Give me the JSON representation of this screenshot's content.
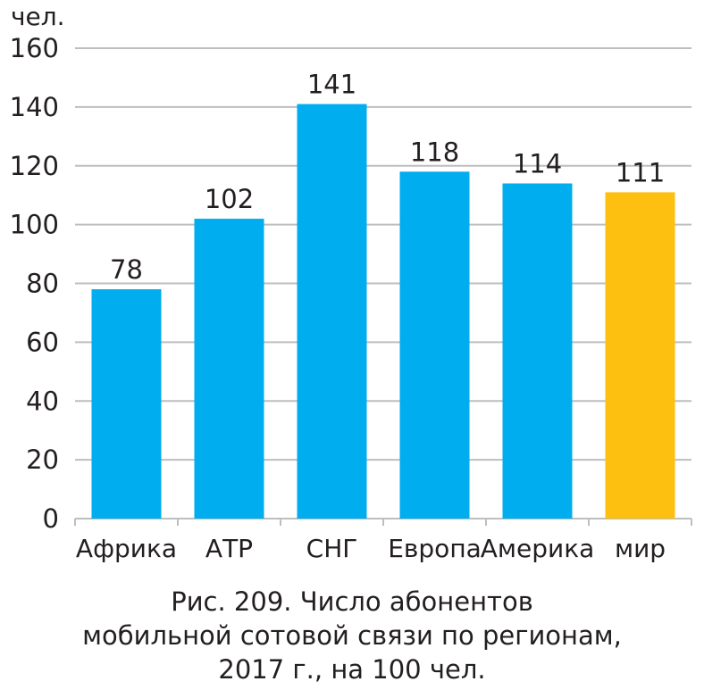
{
  "chart_data": {
    "type": "bar",
    "unit_label": "чел.",
    "categories": [
      "Африка",
      "АТР",
      "СНГ",
      "Европа",
      "Америка",
      "мир"
    ],
    "values": [
      78,
      102,
      141,
      118,
      114,
      111
    ],
    "value_labels": [
      "78",
      "102",
      "141",
      "118",
      "114",
      "111"
    ],
    "ylim": [
      0,
      160
    ],
    "yticks": [
      0,
      20,
      40,
      60,
      80,
      100,
      120,
      140,
      160
    ],
    "grid": true,
    "bar_colors": [
      "#00adef",
      "#00adef",
      "#00adef",
      "#00adef",
      "#00adef",
      "#fdc010"
    ]
  },
  "caption": {
    "line1": "Рис. 209. Число абонентов",
    "line2": "мобильной сотовой связи по регионам,",
    "line3": "2017 г., на 100 чел."
  },
  "colors": {
    "bar": "#00adef",
    "highlight": "#fdc010",
    "grid": "#bcbec0",
    "text": "#231f20"
  }
}
